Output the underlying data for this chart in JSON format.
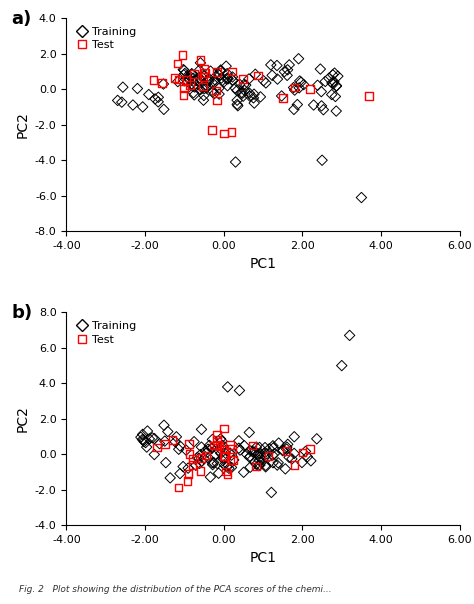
{
  "xlim": [
    -4.0,
    6.0
  ],
  "xlabel": "PC1",
  "ylabel": "PC2",
  "panel_a_ylim": [
    -8.0,
    4.0
  ],
  "panel_a_yticks": [
    -8.0,
    -6.0,
    -4.0,
    -2.0,
    0.0,
    2.0,
    4.0
  ],
  "panel_b_ylim": [
    -4.0,
    8.0
  ],
  "panel_b_yticks": [
    -4.0,
    -2.0,
    0.0,
    2.0,
    4.0,
    6.0,
    8.0
  ],
  "xticks": [
    -4.0,
    -2.0,
    0.0,
    2.0,
    4.0,
    6.0
  ],
  "train_color": "black",
  "test_color": "red",
  "bg_color": "white",
  "label_fontsize": 10,
  "tick_fontsize": 8,
  "panel_label_fontsize": 13,
  "legend_fontsize": 8,
  "caption": "Fig. 2   Plot showing the distribution of the PCA scores of the chemi..."
}
